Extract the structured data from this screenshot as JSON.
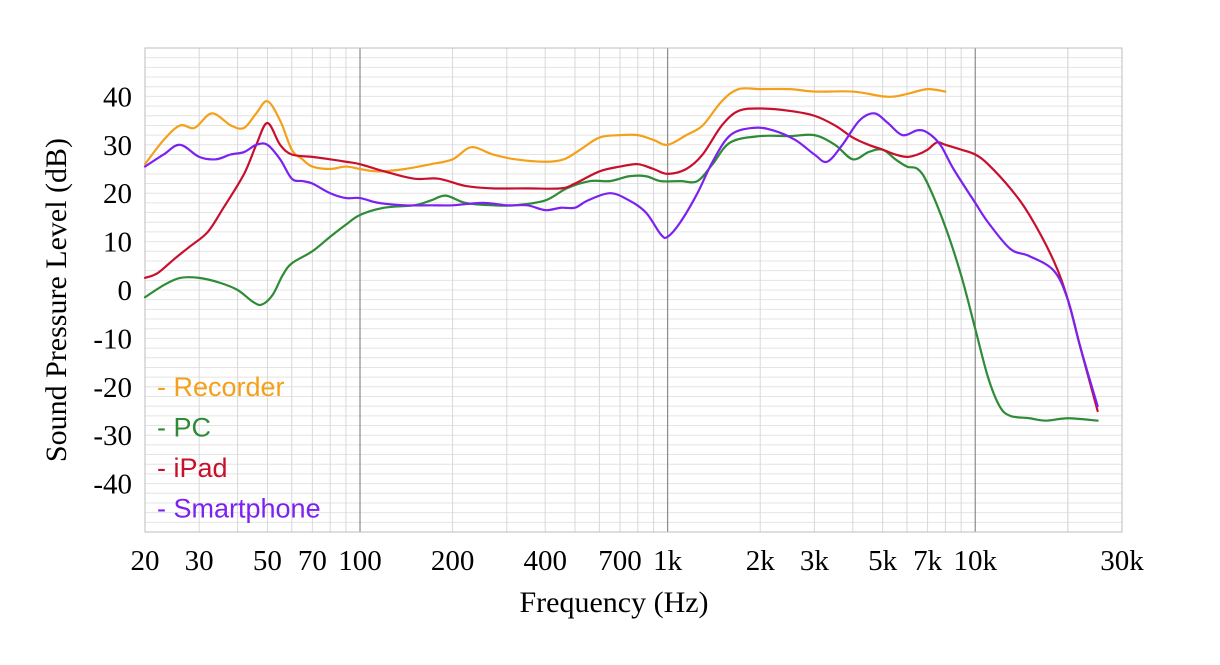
{
  "chart_data": {
    "type": "line",
    "title": "",
    "xlabel": "Frequency  (Hz)",
    "ylabel": "Sound  Pressure  Level  (dB)",
    "x_scale": "log",
    "xlim": [
      20,
      30000
    ],
    "ylim": [
      -50,
      50
    ],
    "x_ticks": [
      {
        "value": 20,
        "label": "20"
      },
      {
        "value": 30,
        "label": "30"
      },
      {
        "value": 50,
        "label": "50"
      },
      {
        "value": 70,
        "label": "70"
      },
      {
        "value": 100,
        "label": "100"
      },
      {
        "value": 200,
        "label": "200"
      },
      {
        "value": 400,
        "label": "400"
      },
      {
        "value": 700,
        "label": "700"
      },
      {
        "value": 1000,
        "label": "1k"
      },
      {
        "value": 2000,
        "label": "2k"
      },
      {
        "value": 3000,
        "label": "3k"
      },
      {
        "value": 5000,
        "label": "5k"
      },
      {
        "value": 7000,
        "label": "7k"
      },
      {
        "value": 10000,
        "label": "10k"
      },
      {
        "value": 30000,
        "label": "30k"
      }
    ],
    "y_ticks": [
      {
        "value": 40,
        "label": "40"
      },
      {
        "value": 30,
        "label": "30"
      },
      {
        "value": 20,
        "label": "20"
      },
      {
        "value": 10,
        "label": "10"
      },
      {
        "value": 0,
        "label": "0"
      },
      {
        "value": -10,
        "label": "-10"
      },
      {
        "value": -20,
        "label": "-20"
      },
      {
        "value": -30,
        "label": "-30"
      },
      {
        "value": -40,
        "label": "-40"
      }
    ],
    "grid": true,
    "legend_position": "bottom-left",
    "series": [
      {
        "name": "- Recorder",
        "color": "#F5A01A",
        "points": [
          [
            20,
            26
          ],
          [
            23,
            31
          ],
          [
            26,
            34
          ],
          [
            29,
            33.5
          ],
          [
            33,
            36.5
          ],
          [
            38,
            34
          ],
          [
            42,
            33.5
          ],
          [
            46,
            36.5
          ],
          [
            50,
            39
          ],
          [
            55,
            35
          ],
          [
            60,
            29
          ],
          [
            65,
            27
          ],
          [
            70,
            25.5
          ],
          [
            80,
            25
          ],
          [
            90,
            25.5
          ],
          [
            100,
            25
          ],
          [
            115,
            24.5
          ],
          [
            140,
            25
          ],
          [
            170,
            26
          ],
          [
            200,
            27
          ],
          [
            230,
            29.5
          ],
          [
            270,
            28
          ],
          [
            320,
            27
          ],
          [
            400,
            26.5
          ],
          [
            460,
            27
          ],
          [
            520,
            29
          ],
          [
            600,
            31.5
          ],
          [
            700,
            32
          ],
          [
            800,
            32
          ],
          [
            900,
            31
          ],
          [
            1000,
            30
          ],
          [
            1150,
            32
          ],
          [
            1300,
            34
          ],
          [
            1500,
            39
          ],
          [
            1700,
            41.5
          ],
          [
            2000,
            41.5
          ],
          [
            2500,
            41.5
          ],
          [
            3000,
            41
          ],
          [
            4000,
            41
          ],
          [
            5000,
            40
          ],
          [
            5500,
            40
          ],
          [
            6000,
            40.5
          ],
          [
            7000,
            41.5
          ],
          [
            8000,
            41
          ]
        ]
      },
      {
        "name": "- PC",
        "color": "#2E8B36",
        "points": [
          [
            20,
            -1.5
          ],
          [
            23,
            1
          ],
          [
            26,
            2.5
          ],
          [
            30,
            2.5
          ],
          [
            35,
            1.5
          ],
          [
            40,
            0
          ],
          [
            45,
            -2.5
          ],
          [
            48,
            -3
          ],
          [
            52,
            -1
          ],
          [
            56,
            3
          ],
          [
            60,
            5.5
          ],
          [
            70,
            8
          ],
          [
            80,
            11
          ],
          [
            90,
            13.5
          ],
          [
            100,
            15.5
          ],
          [
            120,
            17
          ],
          [
            150,
            17.5
          ],
          [
            170,
            18.5
          ],
          [
            190,
            19.5
          ],
          [
            220,
            18
          ],
          [
            270,
            17.5
          ],
          [
            320,
            17.5
          ],
          [
            400,
            18.5
          ],
          [
            470,
            21
          ],
          [
            560,
            22.5
          ],
          [
            650,
            22.5
          ],
          [
            750,
            23.5
          ],
          [
            850,
            23.5
          ],
          [
            950,
            22.5
          ],
          [
            1100,
            22.5
          ],
          [
            1250,
            22.5
          ],
          [
            1400,
            26
          ],
          [
            1600,
            30.5
          ],
          [
            2000,
            31.8
          ],
          [
            2500,
            31.8
          ],
          [
            3000,
            32
          ],
          [
            3500,
            30
          ],
          [
            4000,
            27
          ],
          [
            4500,
            28.5
          ],
          [
            5000,
            29
          ],
          [
            5500,
            27
          ],
          [
            6000,
            25.5
          ],
          [
            6500,
            25
          ],
          [
            7000,
            22
          ],
          [
            8000,
            13
          ],
          [
            9000,
            3
          ],
          [
            10000,
            -8
          ],
          [
            11000,
            -18
          ],
          [
            12000,
            -24
          ],
          [
            13000,
            -26
          ],
          [
            15000,
            -26.5
          ],
          [
            17000,
            -27
          ],
          [
            20000,
            -26.5
          ],
          [
            25000,
            -27
          ]
        ]
      },
      {
        "name": "- iPad",
        "color": "#C8102E",
        "points": [
          [
            20,
            2.5
          ],
          [
            22,
            3.5
          ],
          [
            25,
            6.5
          ],
          [
            28,
            9
          ],
          [
            32,
            12
          ],
          [
            36,
            17
          ],
          [
            42,
            24
          ],
          [
            46,
            30
          ],
          [
            50,
            34.5
          ],
          [
            55,
            30
          ],
          [
            60,
            28
          ],
          [
            70,
            27.5
          ],
          [
            80,
            27
          ],
          [
            90,
            26.5
          ],
          [
            100,
            26
          ],
          [
            120,
            24.5
          ],
          [
            150,
            23
          ],
          [
            180,
            23
          ],
          [
            220,
            21.5
          ],
          [
            270,
            21
          ],
          [
            350,
            21
          ],
          [
            450,
            21
          ],
          [
            500,
            22
          ],
          [
            600,
            24.5
          ],
          [
            700,
            25.5
          ],
          [
            800,
            26
          ],
          [
            900,
            25
          ],
          [
            1000,
            24
          ],
          [
            1150,
            25
          ],
          [
            1300,
            28
          ],
          [
            1500,
            34
          ],
          [
            1700,
            37
          ],
          [
            2000,
            37.5
          ],
          [
            2500,
            37
          ],
          [
            3000,
            36
          ],
          [
            3500,
            34
          ],
          [
            4000,
            31.5
          ],
          [
            4500,
            30
          ],
          [
            5000,
            29
          ],
          [
            5500,
            28
          ],
          [
            6000,
            27.5
          ],
          [
            6500,
            28
          ],
          [
            7000,
            29
          ],
          [
            7500,
            30.5
          ],
          [
            8000,
            30
          ],
          [
            9000,
            29
          ],
          [
            10000,
            28
          ],
          [
            11000,
            26
          ],
          [
            13000,
            21
          ],
          [
            15000,
            15.5
          ],
          [
            18000,
            6
          ],
          [
            20000,
            -2
          ],
          [
            22000,
            -12
          ],
          [
            25000,
            -25
          ]
        ]
      },
      {
        "name": "- Smartphone",
        "color": "#7B22F0",
        "points": [
          [
            20,
            25.5
          ],
          [
            23,
            28
          ],
          [
            26,
            30
          ],
          [
            30,
            27.5
          ],
          [
            34,
            27
          ],
          [
            38,
            28
          ],
          [
            42,
            28.5
          ],
          [
            46,
            30
          ],
          [
            50,
            30
          ],
          [
            55,
            27
          ],
          [
            60,
            23
          ],
          [
            65,
            22.5
          ],
          [
            70,
            22
          ],
          [
            80,
            20
          ],
          [
            90,
            19
          ],
          [
            100,
            19
          ],
          [
            115,
            18
          ],
          [
            140,
            17.5
          ],
          [
            170,
            17.5
          ],
          [
            200,
            17.5
          ],
          [
            250,
            18
          ],
          [
            300,
            17.5
          ],
          [
            350,
            17.5
          ],
          [
            400,
            16.5
          ],
          [
            450,
            17
          ],
          [
            500,
            17
          ],
          [
            550,
            18.5
          ],
          [
            650,
            20
          ],
          [
            750,
            18.5
          ],
          [
            850,
            16
          ],
          [
            950,
            11.5
          ],
          [
            1000,
            11
          ],
          [
            1100,
            14
          ],
          [
            1250,
            20
          ],
          [
            1400,
            26.5
          ],
          [
            1600,
            32
          ],
          [
            1900,
            33.5
          ],
          [
            2200,
            33
          ],
          [
            2600,
            31
          ],
          [
            3000,
            28
          ],
          [
            3300,
            26.5
          ],
          [
            3700,
            30
          ],
          [
            4200,
            35
          ],
          [
            4700,
            36.5
          ],
          [
            5200,
            34.5
          ],
          [
            5800,
            32
          ],
          [
            6500,
            33
          ],
          [
            7000,
            32.5
          ],
          [
            7700,
            30
          ],
          [
            8500,
            25
          ],
          [
            10000,
            18
          ],
          [
            11000,
            14
          ],
          [
            13000,
            8.5
          ],
          [
            15000,
            7
          ],
          [
            18000,
            4
          ],
          [
            20000,
            -2
          ],
          [
            22000,
            -12
          ],
          [
            25000,
            -24
          ]
        ]
      }
    ]
  }
}
